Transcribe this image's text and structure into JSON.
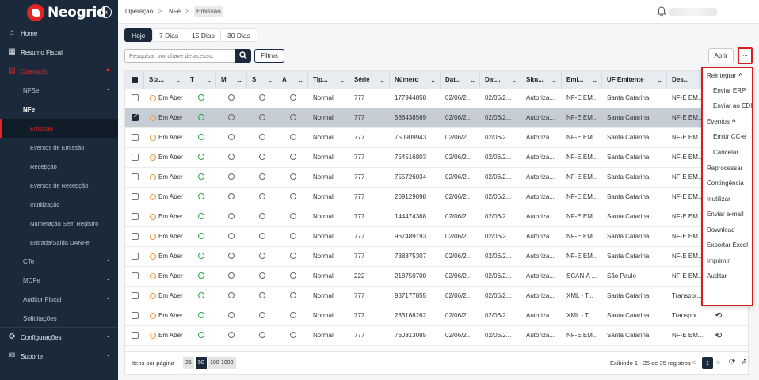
{
  "brand": {
    "name": "Neogrid",
    "collapse_icon": "«"
  },
  "sidebar": {
    "items": [
      {
        "label": "Home",
        "icon": "⌂",
        "top": 30
      },
      {
        "label": "Resumo Fiscal",
        "icon": "▦",
        "top": 54
      },
      {
        "label": "Operação",
        "icon": "▤",
        "top": 78
      }
    ],
    "nfse": "NFSe",
    "nfe": "NFe",
    "nfe_children": [
      "Emissão",
      "Eventos de Emissão",
      "Recepção",
      "Eventos de Recepção",
      "Inutilização",
      "Numeração Sem Registro",
      "Entrada/Saída DANFe"
    ],
    "cte": "CTe",
    "mdfe": "MDFe",
    "auditor": "Auditor Fiscal",
    "solicitacoes": "Solicitações",
    "configuracoes": "Configurações",
    "suporte": "Suporte"
  },
  "breadcrumb": {
    "l1": "Operação",
    "l2": "NFe",
    "l3": "Emissão",
    "sep": ">"
  },
  "tabs": [
    "Hoje",
    "7 Dias",
    "15 Dias",
    "30 Dias"
  ],
  "search": {
    "placeholder": "Pesquisar por chave de acesso."
  },
  "toolbar": {
    "filters": "Filtros",
    "open": "Abrir",
    "more": "..."
  },
  "columns": [
    "Sta...",
    "T",
    "M",
    "S",
    "A",
    "Tip...",
    "Série",
    "Número",
    "Dat...",
    "Dat...",
    "Situ...",
    "Emi...",
    "UF Emitente",
    "Des..."
  ],
  "rows": [
    {
      "status": "Em Aber",
      "tipo": "Normal",
      "serie": "777",
      "numero": "177944858",
      "d1": "02/06/2...",
      "d2": "02/06/2...",
      "situ": "Autoriza...",
      "emi": "NF-E EM...",
      "uf": "Santa Catarina",
      "des": "NF-E EM..."
    },
    {
      "status": "Em Aber",
      "tipo": "Normal",
      "serie": "777",
      "numero": "588438569",
      "d1": "02/06/2...",
      "d2": "02/06/2...",
      "situ": "Autoriza...",
      "emi": "NF-E EM...",
      "uf": "Santa Catarina",
      "des": "NF-E EM...",
      "selected": true
    },
    {
      "status": "Em Aber",
      "tipo": "Normal",
      "serie": "777",
      "numero": "750909943",
      "d1": "02/06/2...",
      "d2": "02/06/2...",
      "situ": "Autoriza...",
      "emi": "NF-E EM...",
      "uf": "Santa Catarina",
      "des": "NF-E EM..."
    },
    {
      "status": "Em Aber",
      "tipo": "Normal",
      "serie": "777",
      "numero": "754516803",
      "d1": "02/06/2...",
      "d2": "02/06/2...",
      "situ": "Autoriza...",
      "emi": "NF-E EM...",
      "uf": "Santa Catarina",
      "des": "NF-E EM..."
    },
    {
      "status": "Em Aber",
      "tipo": "Normal",
      "serie": "777",
      "numero": "755726034",
      "d1": "02/06/2...",
      "d2": "02/06/2...",
      "situ": "Autoriza...",
      "emi": "NF-E EM...",
      "uf": "Santa Catarina",
      "des": "NF-E EM..."
    },
    {
      "status": "Em Aber",
      "tipo": "Normal",
      "serie": "777",
      "numero": "209129098",
      "d1": "02/06/2...",
      "d2": "02/06/2...",
      "situ": "Autoriza...",
      "emi": "NF-E EM...",
      "uf": "Santa Catarina",
      "des": "NF-E EM..."
    },
    {
      "status": "Em Aber",
      "tipo": "Normal",
      "serie": "777",
      "numero": "144474368",
      "d1": "02/06/2...",
      "d2": "02/06/2...",
      "situ": "Autoriza...",
      "emi": "NF-E EM...",
      "uf": "Santa Catarina",
      "des": "NF-E EM..."
    },
    {
      "status": "Em Aber",
      "tipo": "Normal",
      "serie": "777",
      "numero": "967489193",
      "d1": "02/06/2...",
      "d2": "02/06/2...",
      "situ": "Autoriza...",
      "emi": "NF-E EM...",
      "uf": "Santa Catarina",
      "des": "NF-E EM..."
    },
    {
      "status": "Em Aber",
      "tipo": "Normal",
      "serie": "777",
      "numero": "738875307",
      "d1": "02/06/2...",
      "d2": "02/06/2...",
      "situ": "Autoriza...",
      "emi": "NF-E EM...",
      "uf": "Santa Catarina",
      "des": "NF-E EM..."
    },
    {
      "status": "Em Aber",
      "tipo": "Normal",
      "serie": "222",
      "numero": "218750700",
      "d1": "02/06/2...",
      "d2": "02/06/2...",
      "situ": "Autoriza...",
      "emi": "SCANIA ...",
      "uf": "São Paulo",
      "des": "NF-E EM..."
    },
    {
      "status": "Em Aber",
      "tipo": "Normal",
      "serie": "777",
      "numero": "937177855",
      "d1": "02/06/2...",
      "d2": "02/06/2...",
      "situ": "Autoriza...",
      "emi": "XML - T...",
      "uf": "Santa Catarina",
      "des": "Transpor...",
      "history": true
    },
    {
      "status": "Em Aber",
      "tipo": "Normal",
      "serie": "777",
      "numero": "233168262",
      "d1": "02/06/2...",
      "d2": "02/06/2...",
      "situ": "Autoriza...",
      "emi": "XML - T...",
      "uf": "Santa Catarina",
      "des": "Transpor...",
      "history": true
    },
    {
      "status": "Em Aber",
      "tipo": "Normal",
      "serie": "777",
      "numero": "760813085",
      "d1": "02/06/2...",
      "d2": "02/06/2...",
      "situ": "Autoriza...",
      "emi": "NF-E EM...",
      "uf": "Santa Catarina",
      "des": "NF-E EM...",
      "history": true
    }
  ],
  "menu": {
    "reintegrar": "Reintegrar",
    "enviar_erp": "Enviar ERP",
    "enviar_edi": "Enviar ao EDI",
    "eventos": "Eventos",
    "emitir_cce": "Emitir CC-e",
    "cancelar": "Cancelar",
    "reprocessar": "Reprocessar",
    "contingencia": "Contingência",
    "inutilizar": "Inutilizar",
    "enviar_email": "Enviar e-mail",
    "download": "Download",
    "exportar_excel": "Exportar Excel",
    "imprimir": "Imprimir",
    "auditar": "Auditar",
    "expand_icon": "^"
  },
  "footer": {
    "per_page_label": "Itens por página",
    "per_page_options": [
      "25",
      "50",
      "100",
      "1000"
    ],
    "records": "Exibindo 1 - 35 de 35 registros",
    "page": "1",
    "prev": "<",
    "next": ">"
  }
}
